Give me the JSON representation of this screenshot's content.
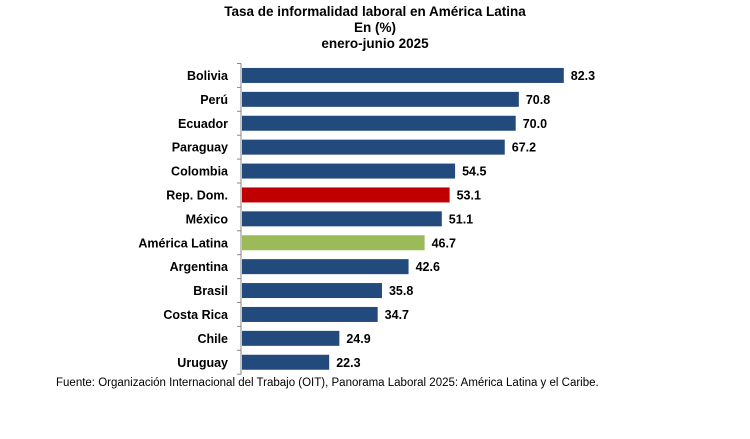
{
  "chart_data": {
    "type": "bar",
    "orientation": "horizontal",
    "title": [
      "Tasa de informalidad laboral en América Latina",
      "En (%)",
      "enero-junio 2025"
    ],
    "categories": [
      "Bolivia",
      "Perú",
      "Ecuador",
      "Paraguay",
      "Colombia",
      "Rep. Dom.",
      "México",
      "América Latina",
      "Argentina",
      "Brasil",
      "Costa Rica",
      "Chile",
      "Uruguay"
    ],
    "values": [
      82.3,
      70.8,
      70.0,
      67.2,
      54.5,
      53.1,
      51.1,
      46.7,
      42.6,
      35.8,
      34.7,
      24.9,
      22.3
    ],
    "labels": [
      "82.3",
      "70.8",
      "70.0",
      "67.2",
      "54.5",
      "53.1",
      "51.1",
      "46.7",
      "42.6",
      "35.8",
      "34.7",
      "24.9",
      "22.3"
    ],
    "colors": {
      "default": "#234a7c",
      "Rep. Dom.": "#c00000",
      "América Latina": "#9bbb59"
    },
    "xlim": [
      0,
      85
    ],
    "grid": false,
    "legend": "none"
  },
  "source": "Fuente: Organización Internacional del Trabajo (OIT), Panorama Laboral 2025: América Latina y el Caribe."
}
